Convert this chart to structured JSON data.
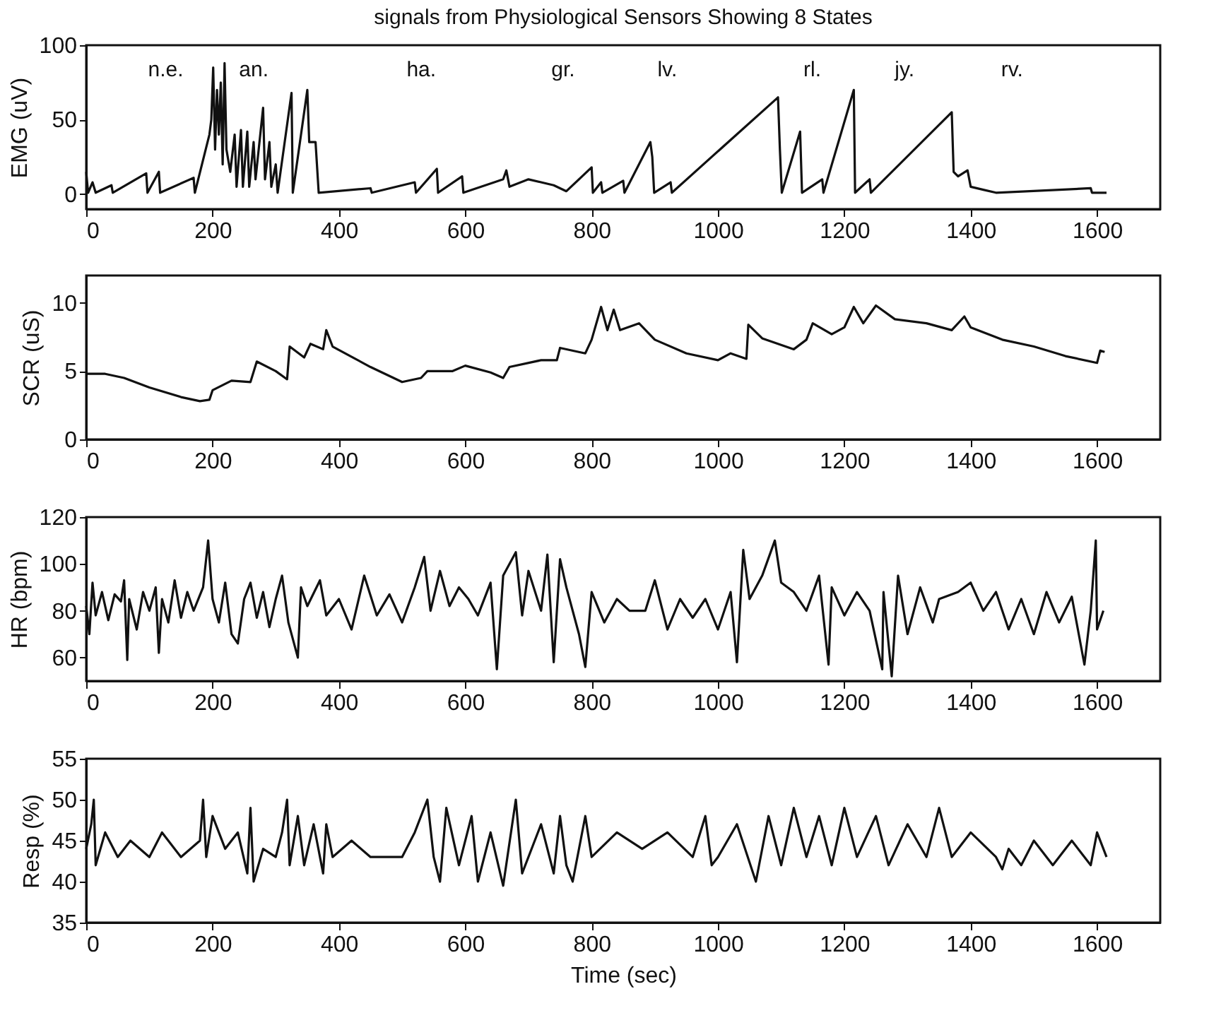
{
  "chart_data": [
    {
      "type": "line",
      "title": "signals from Physiological  Sensors Showing 8 States",
      "ylabel": "EMG (uV)",
      "xlim": [
        0,
        1700
      ],
      "xticks": [
        0,
        200,
        400,
        600,
        800,
        1000,
        1200,
        1400,
        1600
      ],
      "ylim": [
        -10,
        100
      ],
      "yticks": [
        0,
        50,
        100
      ],
      "annotations": [
        "n.e.",
        "an.",
        "ha.",
        "gr.",
        "lv.",
        "rl.",
        "jy.",
        "rv."
      ],
      "x": [
        0,
        3,
        10,
        15,
        40,
        42,
        95,
        97,
        115,
        117,
        170,
        172,
        195,
        198,
        201,
        204,
        207,
        210,
        213,
        216,
        219,
        222,
        228,
        235,
        238,
        245,
        248,
        255,
        258,
        265,
        268,
        280,
        283,
        290,
        293,
        300,
        303,
        325,
        327,
        350,
        353,
        360,
        363,
        368,
        450,
        452,
        520,
        522,
        555,
        557,
        595,
        597,
        660,
        665,
        670,
        700,
        720,
        740,
        760,
        800,
        802,
        815,
        817,
        850,
        852,
        893,
        896,
        899,
        925,
        927,
        1095,
        1098,
        1101,
        1130,
        1133,
        1165,
        1167,
        1215,
        1217,
        1240,
        1242,
        1370,
        1373,
        1380,
        1395,
        1400,
        1420,
        1440,
        1590,
        1592,
        1615
      ],
      "series": [
        {
          "color": "#111111",
          "values": [
            15,
            1,
            8,
            1,
            6,
            1,
            14,
            1,
            15,
            1,
            11,
            1,
            40,
            50,
            85,
            30,
            70,
            40,
            75,
            20,
            88,
            30,
            15,
            40,
            5,
            43,
            5,
            42,
            5,
            35,
            10,
            58,
            10,
            35,
            5,
            20,
            1,
            68,
            1,
            70,
            35,
            35,
            35,
            1,
            4,
            1,
            8,
            1,
            17,
            1,
            12,
            1,
            10,
            16,
            5,
            10,
            8,
            6,
            2,
            18,
            1,
            8,
            1,
            9,
            1,
            35,
            25,
            1,
            8,
            1,
            65,
            30,
            1,
            42,
            1,
            10,
            1,
            70,
            1,
            10,
            1,
            55,
            15,
            12,
            16,
            5,
            3,
            1,
            4,
            1,
            1
          ]
        }
      ]
    },
    {
      "type": "line",
      "ylabel": "SCR (uS)",
      "xlim": [
        0,
        1700
      ],
      "xticks": [
        0,
        200,
        400,
        600,
        800,
        1000,
        1200,
        1400,
        1600
      ],
      "ylim": [
        0,
        12
      ],
      "yticks": [
        0,
        5,
        10
      ],
      "x": [
        0,
        30,
        60,
        100,
        150,
        180,
        195,
        200,
        230,
        260,
        270,
        300,
        318,
        322,
        345,
        355,
        375,
        380,
        390,
        450,
        500,
        530,
        540,
        580,
        600,
        640,
        660,
        670,
        720,
        745,
        750,
        790,
        800,
        815,
        825,
        835,
        845,
        875,
        900,
        950,
        1000,
        1020,
        1045,
        1048,
        1070,
        1120,
        1140,
        1150,
        1180,
        1200,
        1215,
        1230,
        1250,
        1280,
        1330,
        1370,
        1390,
        1400,
        1450,
        1500,
        1550,
        1600,
        1605,
        1612
      ],
      "series": [
        {
          "color": "#111111",
          "values": [
            4.8,
            4.8,
            4.5,
            3.8,
            3.1,
            2.8,
            2.9,
            3.6,
            4.3,
            4.2,
            5.7,
            5.0,
            4.4,
            6.8,
            6.0,
            7.0,
            6.6,
            8.0,
            6.8,
            5.3,
            4.2,
            4.5,
            5.0,
            5.0,
            5.4,
            4.9,
            4.5,
            5.3,
            5.8,
            5.8,
            6.7,
            6.3,
            7.3,
            9.7,
            8.0,
            9.5,
            8.0,
            8.5,
            7.3,
            6.3,
            5.8,
            6.3,
            5.9,
            8.4,
            7.4,
            6.6,
            7.3,
            8.5,
            7.7,
            8.2,
            9.7,
            8.5,
            9.8,
            8.8,
            8.5,
            8.0,
            9.0,
            8.2,
            7.3,
            6.8,
            6.1,
            5.6,
            6.5,
            6.4
          ]
        }
      ]
    },
    {
      "type": "line",
      "ylabel": "HR (bpm)",
      "xlim": [
        0,
        1700
      ],
      "xticks": [
        0,
        200,
        400,
        600,
        800,
        1000,
        1200,
        1400,
        1600
      ],
      "ylim": [
        50,
        120
      ],
      "yticks": [
        60,
        80,
        100,
        120
      ],
      "x": [
        0,
        5,
        10,
        15,
        25,
        35,
        45,
        55,
        60,
        65,
        68,
        80,
        90,
        100,
        110,
        115,
        120,
        130,
        140,
        150,
        160,
        170,
        185,
        193,
        196,
        200,
        210,
        220,
        230,
        240,
        250,
        260,
        270,
        280,
        290,
        300,
        310,
        320,
        335,
        340,
        350,
        370,
        380,
        400,
        420,
        440,
        460,
        480,
        500,
        520,
        535,
        545,
        560,
        575,
        590,
        600,
        605,
        620,
        640,
        650,
        660,
        680,
        690,
        700,
        720,
        730,
        740,
        750,
        760,
        780,
        790,
        800,
        820,
        840,
        860,
        880,
        885,
        900,
        920,
        940,
        960,
        980,
        1000,
        1020,
        1030,
        1040,
        1050,
        1070,
        1090,
        1100,
        1120,
        1140,
        1160,
        1175,
        1180,
        1200,
        1220,
        1240,
        1260,
        1262,
        1275,
        1285,
        1300,
        1320,
        1340,
        1345,
        1350,
        1380,
        1400,
        1420,
        1440,
        1460,
        1480,
        1500,
        1520,
        1540,
        1560,
        1580,
        1590,
        1598,
        1600,
        1610
      ],
      "series": [
        {
          "color": "#111111",
          "values": [
            82,
            70,
            92,
            78,
            88,
            76,
            87,
            84,
            93,
            59,
            85,
            72,
            88,
            80,
            90,
            62,
            85,
            75,
            93,
            77,
            88,
            80,
            90,
            110,
            null,
            85,
            75,
            92,
            70,
            66,
            85,
            92,
            77,
            88,
            73,
            85,
            95,
            75,
            60,
            90,
            82,
            93,
            78,
            85,
            72,
            95,
            78,
            87,
            75,
            90,
            103,
            80,
            97,
            82,
            90,
            null,
            85,
            78,
            92,
            55,
            95,
            105,
            78,
            97,
            80,
            104,
            58,
            102,
            90,
            70,
            56,
            88,
            75,
            85,
            80,
            null,
            80,
            93,
            72,
            85,
            77,
            85,
            72,
            88,
            58,
            106,
            85,
            95,
            110,
            92,
            88,
            80,
            95,
            57,
            90,
            78,
            88,
            80,
            55,
            88,
            52,
            95,
            70,
            90,
            75,
            null,
            85,
            88,
            92,
            80,
            88,
            72,
            85,
            70,
            88,
            75,
            86,
            57,
            80,
            110,
            72,
            80
          ]
        }
      ]
    },
    {
      "type": "line",
      "ylabel": "Resp (%)",
      "xlabel": "Time (sec)",
      "xlim": [
        0,
        1700
      ],
      "xticks": [
        0,
        200,
        400,
        600,
        800,
        1000,
        1200,
        1400,
        1600
      ],
      "ylim": [
        35,
        55
      ],
      "yticks": [
        35,
        40,
        45,
        50,
        55
      ],
      "x": [
        0,
        8,
        12,
        15,
        30,
        50,
        70,
        100,
        120,
        150,
        180,
        185,
        190,
        200,
        220,
        240,
        255,
        260,
        265,
        280,
        300,
        310,
        318,
        322,
        335,
        345,
        360,
        375,
        380,
        390,
        420,
        450,
        500,
        520,
        540,
        550,
        560,
        570,
        590,
        610,
        620,
        640,
        660,
        680,
        690,
        720,
        740,
        750,
        760,
        770,
        790,
        800,
        840,
        880,
        920,
        960,
        980,
        990,
        1000,
        1030,
        1060,
        1080,
        1100,
        1120,
        1140,
        1160,
        1180,
        1200,
        1220,
        1250,
        1270,
        1300,
        1330,
        1350,
        1370,
        1400,
        1440,
        1450,
        1460,
        1480,
        1500,
        1530,
        1560,
        1590,
        1600,
        1615
      ],
      "series": [
        {
          "color": "#111111",
          "values": [
            44,
            47,
            50,
            42,
            46,
            43,
            45,
            43,
            46,
            43,
            45,
            50,
            43,
            48,
            44,
            46,
            41,
            49,
            40,
            44,
            43,
            46,
            50,
            42,
            48,
            42,
            47,
            41,
            47,
            43,
            45,
            43,
            43,
            46,
            50,
            43,
            40,
            49,
            42,
            48,
            40,
            46,
            39.5,
            50,
            41,
            47,
            41,
            48,
            42,
            40,
            48,
            43,
            46,
            44,
            46,
            43,
            48,
            42,
            43,
            47,
            40,
            48,
            42,
            49,
            43,
            48,
            42,
            49,
            43,
            48,
            42,
            47,
            43,
            49,
            43,
            46,
            43,
            41.5,
            44,
            42,
            45,
            42,
            45,
            42,
            46,
            43
          ]
        }
      ]
    }
  ]
}
